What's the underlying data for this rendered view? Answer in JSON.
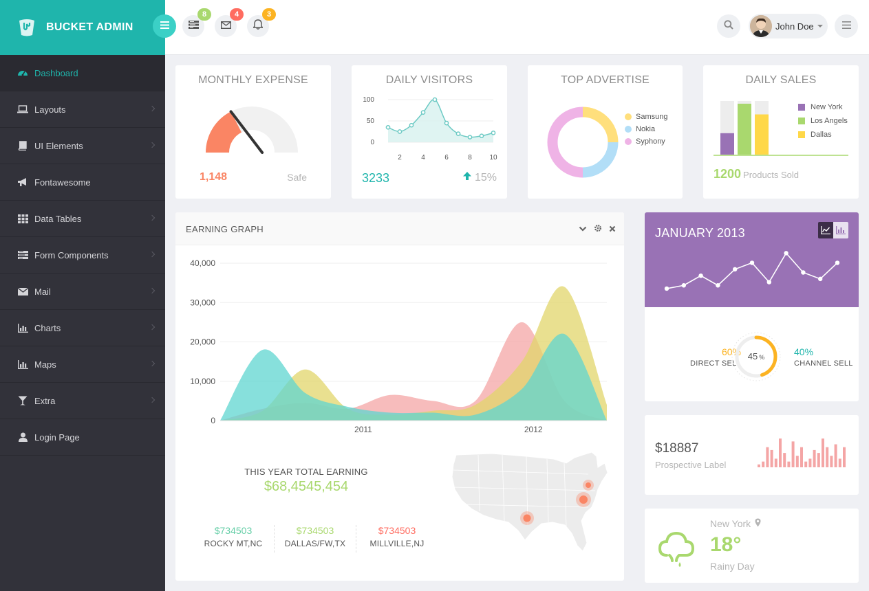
{
  "brand": {
    "name": "BUCKET ADMIN"
  },
  "header": {
    "notifications": [
      {
        "icon": "tasks-icon",
        "count": "8",
        "color": "#a9d86e"
      },
      {
        "icon": "envelope-icon",
        "count": "4",
        "color": "#ff6c60"
      },
      {
        "icon": "bell-icon",
        "count": "3",
        "color": "#fcb322"
      }
    ],
    "user": {
      "name": "John Doe"
    }
  },
  "sidebar": {
    "items": [
      {
        "label": "Dashboard",
        "icon": "dashboard-icon",
        "active": true
      },
      {
        "label": "Layouts",
        "icon": "laptop-icon"
      },
      {
        "label": "UI Elements",
        "icon": "book-icon"
      },
      {
        "label": "Fontawesome",
        "icon": "bullhorn-icon"
      },
      {
        "label": "Data Tables",
        "icon": "th-icon"
      },
      {
        "label": "Form Components",
        "icon": "tasks-icon"
      },
      {
        "label": "Mail",
        "icon": "envelope-icon"
      },
      {
        "label": "Charts",
        "icon": "bar-chart-icon"
      },
      {
        "label": "Maps",
        "icon": "bar-chart-icon"
      },
      {
        "label": "Extra",
        "icon": "glass-icon"
      },
      {
        "label": "Login Page",
        "icon": "user-icon"
      }
    ]
  },
  "monthly_expense": {
    "title": "MONTHLY EXPENSE",
    "value": "1,148",
    "status": "Safe",
    "gauge_fraction": 0.35
  },
  "daily_visitors": {
    "title": "DAILY VISITORS",
    "value": "3233",
    "change": "15%"
  },
  "top_advertise": {
    "title": "TOP ADVERTISE"
  },
  "daily_sales": {
    "title": "DAILY SALES",
    "value": "1200",
    "caption": "Products Sold"
  },
  "earning_graph": {
    "title": "EARNING GRAPH",
    "total_label": "THIS YEAR TOTAL EARNING",
    "total_value": "$68,4545,454",
    "stats": [
      {
        "value": "$734503",
        "label": "ROCKY MT,NC",
        "color": "#65cea7"
      },
      {
        "value": "$734503",
        "label": "DALLAS/FW,TX",
        "color": "#a9d86e"
      },
      {
        "value": "$734503",
        "label": "MILLVILLE,NJ",
        "color": "#ff6c60"
      }
    ]
  },
  "january": {
    "title": "JANUARY 2013",
    "direct_pct": "60%",
    "direct_label": "DIRECT SELL",
    "channel_pct": "40%",
    "channel_label": "CHANNEL SELL",
    "center_value": "45",
    "center_unit": "%",
    "progress": 0.45
  },
  "prospective": {
    "value": "$18887",
    "label": "Prospective Label"
  },
  "weather": {
    "city": "New York",
    "temp": "18°",
    "desc": "Rainy Day"
  },
  "chart_data": [
    {
      "type": "line",
      "name": "daily-visitors",
      "x": [
        1,
        2,
        3,
        4,
        5,
        6,
        7,
        8,
        9,
        10
      ],
      "values": [
        35,
        25,
        40,
        70,
        100,
        45,
        20,
        12,
        15,
        22
      ],
      "xticks": [
        "2",
        "4",
        "6",
        "8",
        "10"
      ],
      "yticks": [
        "100",
        "50",
        "0"
      ],
      "ylim": [
        0,
        100
      ]
    },
    {
      "type": "pie",
      "name": "top-advertise",
      "labels": [
        "Samsung",
        "Nokia",
        "Syphony"
      ],
      "values": [
        25,
        25,
        50
      ],
      "colors": [
        "#ffdf7c",
        "#b2def7",
        "#efb3e6"
      ]
    },
    {
      "type": "bar",
      "name": "daily-sales",
      "categories": [
        "New York",
        "Los Angels",
        "Dallas"
      ],
      "values": [
        40,
        95,
        75
      ],
      "ylim": [
        0,
        100
      ],
      "colors": [
        "#9972b5",
        "#a9d86e",
        "#ffd848"
      ]
    },
    {
      "type": "area",
      "name": "earning-graph",
      "xticks": [
        "2011",
        "2012"
      ],
      "yticks": [
        "40,000",
        "30,000",
        "20,000",
        "10,000",
        "0"
      ],
      "ylim": [
        0,
        40000
      ],
      "series": [
        {
          "x": [
            0,
            0.11,
            0.22,
            0.33,
            0.44,
            0.55,
            0.66,
            0.78,
            0.89,
            1
          ],
          "values": [
            0,
            18000,
            7000,
            3500,
            2000,
            2000,
            1500,
            8000,
            22000,
            0
          ],
          "color": "#5fd6d0"
        },
        {
          "x": [
            0,
            0.11,
            0.22,
            0.33,
            0.44,
            0.55,
            0.66,
            0.78,
            0.89,
            1
          ],
          "values": [
            0,
            2500,
            13000,
            3000,
            1500,
            2500,
            4000,
            15000,
            34000,
            4000
          ],
          "color": "#e2d66b"
        },
        {
          "x": [
            0,
            0.11,
            0.22,
            0.33,
            0.44,
            0.55,
            0.66,
            0.78,
            0.89,
            1
          ],
          "values": [
            0,
            3000,
            4500,
            3000,
            6500,
            5000,
            5000,
            25000,
            5000,
            0
          ],
          "color": "#f4a5a5"
        }
      ]
    },
    {
      "type": "line",
      "name": "january-2013",
      "values": [
        3,
        4,
        7,
        4,
        9,
        11,
        5,
        14,
        8,
        6,
        11
      ],
      "ylim": [
        0,
        16
      ]
    },
    {
      "type": "bar",
      "name": "prospective-bars",
      "values": [
        2,
        4,
        14,
        12,
        6,
        20,
        10,
        4,
        18,
        8,
        14,
        4,
        6,
        12,
        10,
        20,
        14,
        8,
        16,
        6,
        14
      ],
      "ylim": [
        0,
        22
      ]
    }
  ]
}
